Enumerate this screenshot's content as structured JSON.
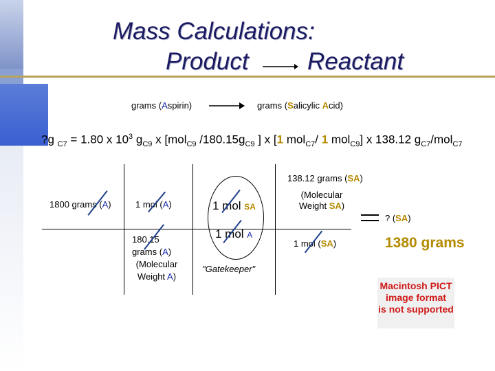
{
  "title": {
    "line1": "Mass Calculations:",
    "line2_left": "Product",
    "line2_right": "Reactant"
  },
  "flow": {
    "left_prefix": "grams (",
    "left_key": "A",
    "left_rest": "spirin)",
    "right_prefix": "grams (",
    "right_key1": "S",
    "right_mid": "alicylic ",
    "right_key2": "A",
    "right_end": "cid)"
  },
  "equation": {
    "p1": "?g ",
    "s1": "C7",
    "p2": " = 1.80 x 10",
    "sup1": "3",
    "p3": " g",
    "s2": "C9",
    "p4": " x  [mol",
    "s3": "C9",
    "p5": " /180.15g",
    "s4": "C9",
    "p6": " ] x [",
    "n1": "1",
    "p7": " mol",
    "s5": "C7",
    "p8": "/ ",
    "n2": "1",
    "p9": " mol",
    "s6": "C9",
    "p10": "] x 138.12 g",
    "s7": "C7",
    "p11": "/mol",
    "s8": "C7"
  },
  "grid": {
    "sa_mw_top": "138.12 grams (",
    "sa_tag": "SA",
    "close": ")",
    "col1_top": "1800 grams (",
    "a_tag": "A",
    "col2_top": "1 mol (",
    "col2_bottom_1": "180.15",
    "col2_bottom_2": "grams (",
    "col2_bottom_3": "(Molecular",
    "col2_bottom_4": "Weight ",
    "col3_top": "1 mol ",
    "col3_bottom": "1 mol ",
    "gatekeeper": "\"Gatekeeper\"",
    "col4_top_1": "(Molecular",
    "col4_top_2": "Weight ",
    "col4_bottom": "1 mol (",
    "equals": "=",
    "result_label_prefix": "? (",
    "result": "1380 grams"
  },
  "pict": {
    "line1": "Macintosh PICT",
    "line2": "image format",
    "line3": "is not supported"
  },
  "colors": {
    "title": "#1b1b63",
    "accent_blue": "#1a2aa8",
    "accent_gold": "#b58a00",
    "pict_red": "#d01818"
  }
}
